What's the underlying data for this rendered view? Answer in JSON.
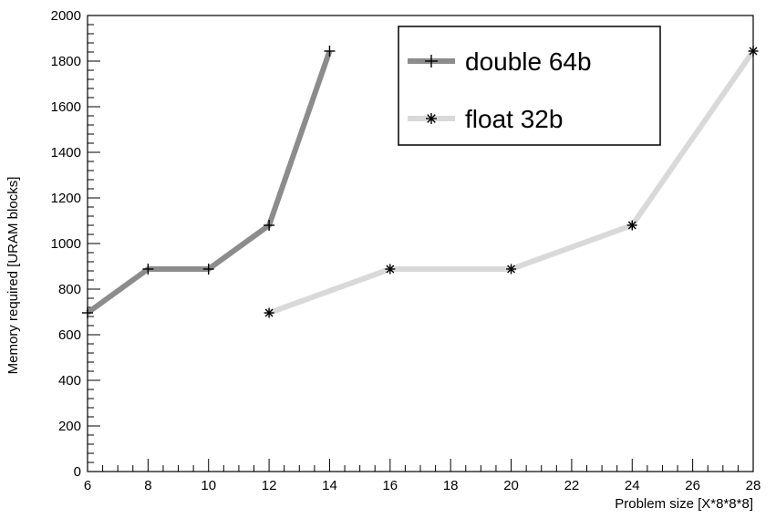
{
  "chart_data": {
    "type": "line",
    "title": "",
    "xlabel": "Problem size [X*8*8*8]",
    "ylabel": "Memory required [URAM blocks]",
    "xlim": [
      6,
      28
    ],
    "ylim": [
      0,
      2000
    ],
    "x_ticks": [
      6,
      8,
      10,
      12,
      14,
      16,
      18,
      20,
      22,
      24,
      26,
      28
    ],
    "y_ticks": [
      0,
      200,
      400,
      600,
      800,
      1000,
      1200,
      1400,
      1600,
      1800,
      2000
    ],
    "grid": false,
    "legend_position": "top-right",
    "series": [
      {
        "name": "double 64b",
        "color": "#8c8c8c",
        "marker": "plus",
        "x": [
          6,
          8,
          10,
          12,
          14
        ],
        "y": [
          696,
          888,
          888,
          1080,
          1844
        ]
      },
      {
        "name": "float 32b",
        "color": "#d9d9d9",
        "marker": "asterisk",
        "x": [
          12,
          16,
          20,
          24,
          28
        ],
        "y": [
          696,
          888,
          888,
          1080,
          1844
        ]
      }
    ]
  }
}
